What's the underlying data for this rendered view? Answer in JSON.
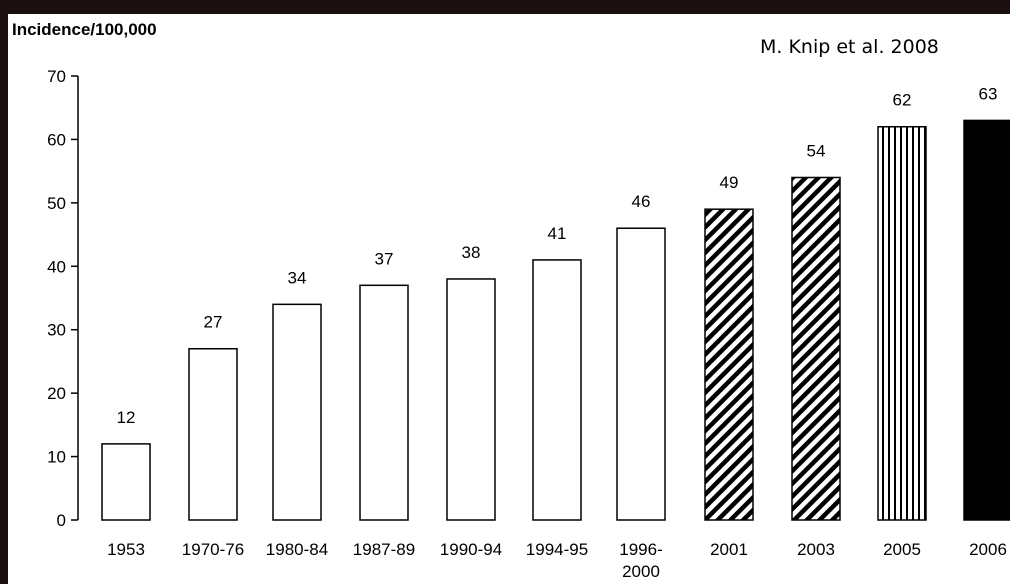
{
  "citation": "M. Knip et al. 2008",
  "chart_data": {
    "type": "bar",
    "title": "",
    "ylabel": "Incidence/100,000",
    "xlabel": "",
    "ylim": [
      0,
      70
    ],
    "yticks": [
      0,
      10,
      20,
      30,
      40,
      50,
      60,
      70
    ],
    "categories": [
      "1953",
      "1970-76",
      "1980-84",
      "1987-89",
      "1990-94",
      "1994-95",
      "1996-\n2000",
      "2001",
      "2003",
      "2005",
      "2006"
    ],
    "values": [
      12,
      27,
      34,
      37,
      38,
      41,
      46,
      49,
      54,
      62,
      63
    ],
    "fills": [
      "white",
      "white",
      "white",
      "white",
      "white",
      "white",
      "white",
      "diagonal-hatch",
      "diagonal-hatch",
      "vertical-stripes",
      "black"
    ]
  }
}
